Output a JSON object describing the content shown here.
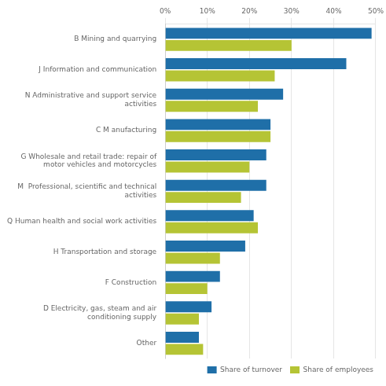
{
  "chart_data": {
    "type": "bar",
    "orientation": "horizontal",
    "categories": [
      "B Mining and quarrying",
      "J Information and communication",
      "N Administrative and support service\nactivities",
      "C M anufacturing",
      "G Wholesale and retail trade: repair of\nmotor vehicles and motorcycles",
      "M  Professional, scientific and technical\nactivities",
      "Q Human health and social work activities",
      "H Transportation and storage",
      "F Construction",
      "D Electricity, gas, steam and air\nconditioning supply",
      "Other"
    ],
    "series": [
      {
        "name": "Share of turnover",
        "color": "#1f6fa8",
        "values": [
          49,
          43,
          28,
          25,
          24,
          24,
          21,
          19,
          13,
          11,
          8
        ]
      },
      {
        "name": "Share of employees",
        "color": "#b5c435",
        "values": [
          30,
          26,
          22,
          25,
          20,
          18,
          22,
          13,
          10,
          8,
          9
        ]
      }
    ],
    "xlim": [
      0,
      50
    ],
    "xticks": [
      {
        "value": 0,
        "label": "0%"
      },
      {
        "value": 10,
        "label": "10%"
      },
      {
        "value": 20,
        "label": "20%"
      },
      {
        "value": 30,
        "label": "30%"
      },
      {
        "value": 40,
        "label": "40%"
      },
      {
        "value": 50,
        "label": "50%"
      }
    ],
    "grid": true,
    "legend": "lower right"
  }
}
